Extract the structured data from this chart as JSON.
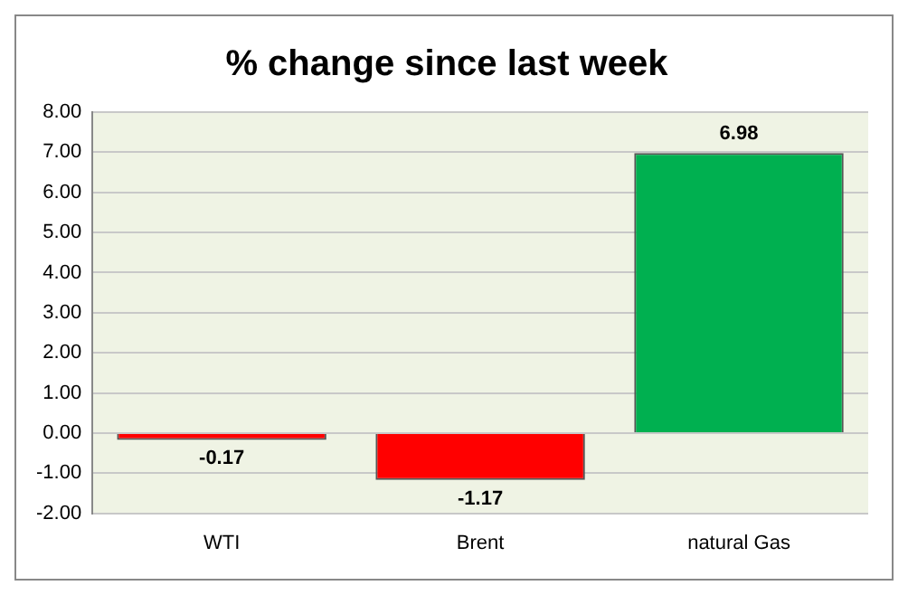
{
  "chart_data": {
    "type": "bar",
    "title": "% change since last week",
    "categories": [
      "WTI",
      "Brent",
      "natural Gas"
    ],
    "values": [
      -0.17,
      -1.17,
      6.98
    ],
    "colors": [
      "#ff0000",
      "#ff0000",
      "#00b050"
    ],
    "ylim": [
      -2,
      8
    ],
    "yticks": [
      {
        "value": -2,
        "label": "-2.00"
      },
      {
        "value": -1,
        "label": "-1.00"
      },
      {
        "value": 0,
        "label": "0.00"
      },
      {
        "value": 1,
        "label": "1.00"
      },
      {
        "value": 2,
        "label": "2.00"
      },
      {
        "value": 3,
        "label": "3.00"
      },
      {
        "value": 4,
        "label": "4.00"
      },
      {
        "value": 5,
        "label": "5.00"
      },
      {
        "value": 6,
        "label": "6.00"
      },
      {
        "value": 7,
        "label": "7.00"
      },
      {
        "value": 8,
        "label": "8.00"
      }
    ],
    "grid": "y",
    "data_labels": true
  }
}
